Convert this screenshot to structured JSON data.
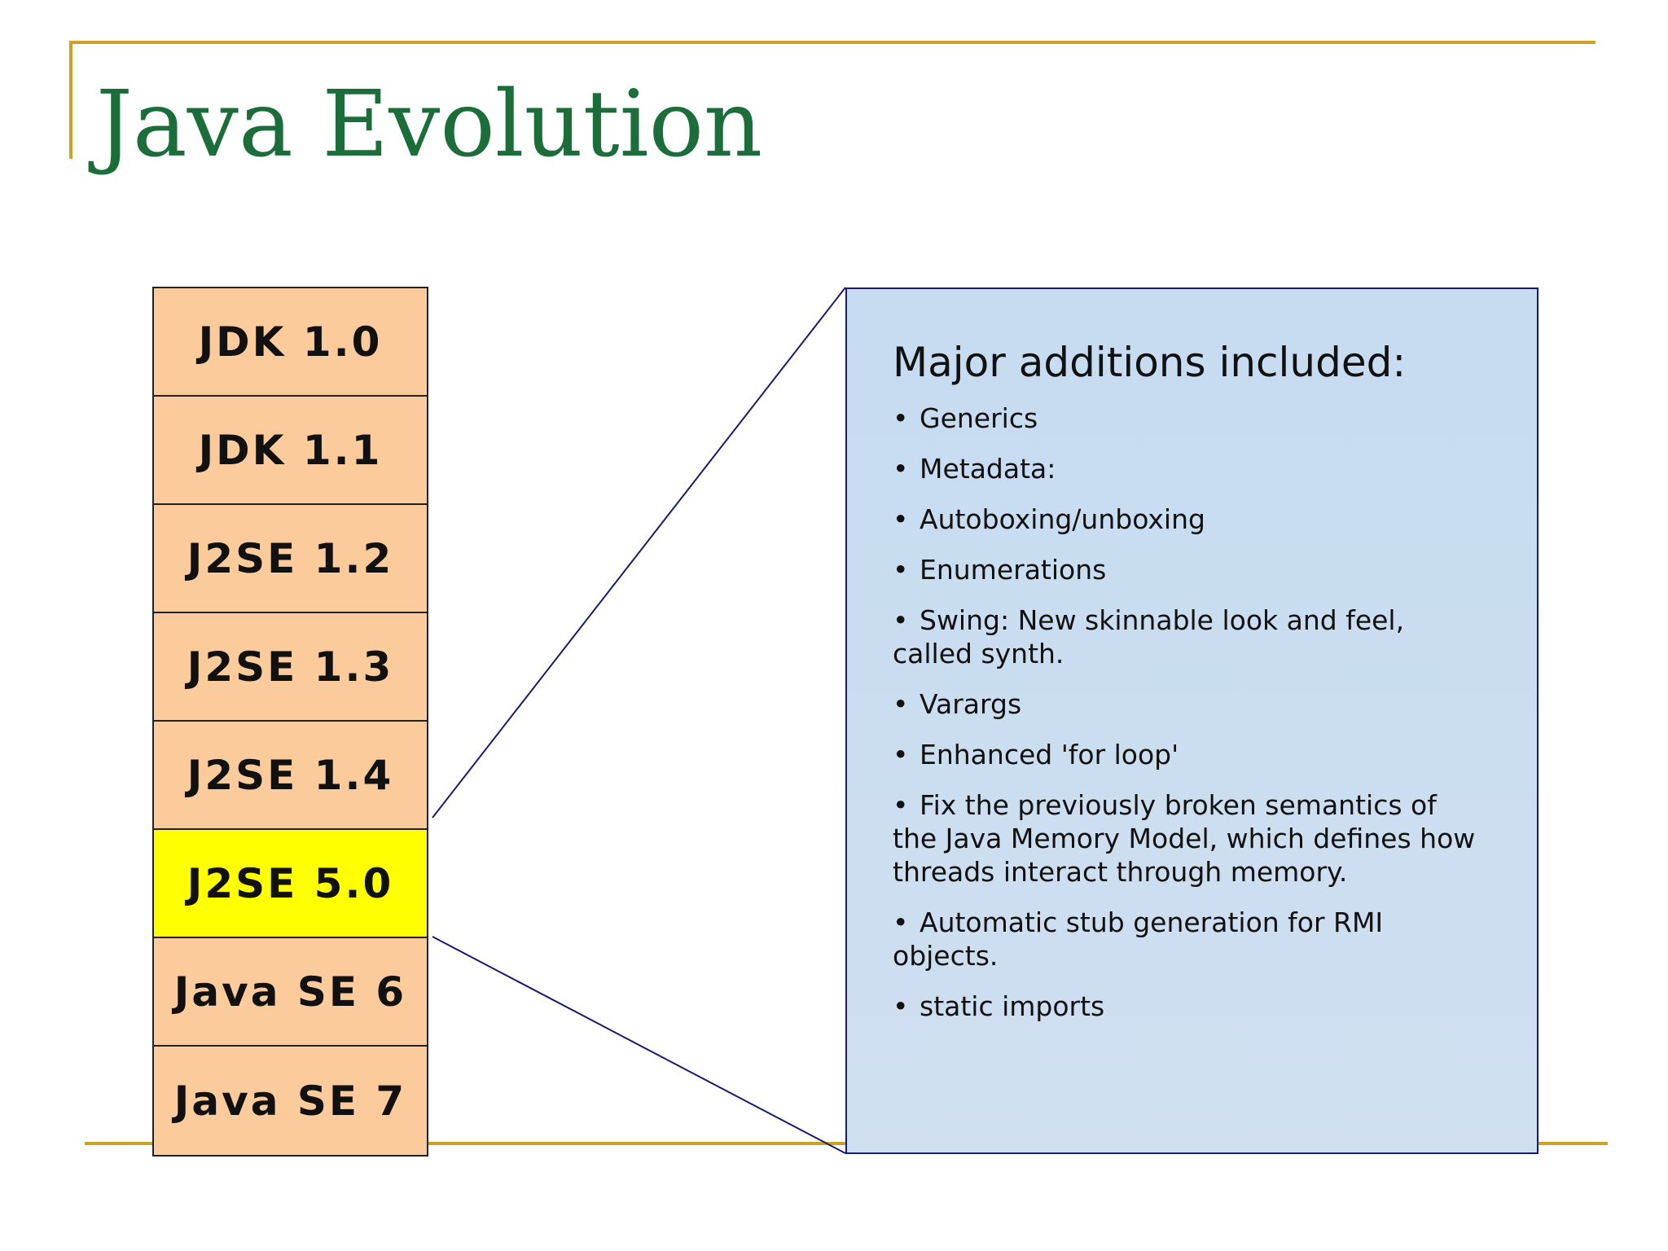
{
  "slide": {
    "title": "Java Evolution"
  },
  "versions": [
    {
      "label": "JDK 1.0",
      "highlighted": false
    },
    {
      "label": "JDK 1.1",
      "highlighted": false
    },
    {
      "label": "J2SE 1.2",
      "highlighted": false
    },
    {
      "label": "J2SE 1.3",
      "highlighted": false
    },
    {
      "label": "J2SE 1.4",
      "highlighted": false
    },
    {
      "label": "J2SE 5.0",
      "highlighted": true
    },
    {
      "label": "Java SE 6",
      "highlighted": false
    },
    {
      "label": "Java SE 7",
      "highlighted": false
    }
  ],
  "details": {
    "heading": "Major additions included:",
    "bullet_glyph": "•",
    "items": [
      "Generics",
      "Metadata:",
      "Autoboxing/unboxing",
      "Enumerations",
      "Swing: New skinnable look and feel, called synth.",
      "Varargs",
      "Enhanced 'for loop'",
      "Fix the previously broken semantics of the Java Memory Model, which defines how threads interact through memory.",
      "Automatic stub generation for RMI objects.",
      "static imports"
    ]
  },
  "colors": {
    "title_green": "#1b6e3a",
    "rule_gold": "#c9a227",
    "version_fill": "#fccb9c",
    "highlight_fill": "#ffff00",
    "detail_fill": "#c6dcf1",
    "callout_line": "#1a1a6e"
  }
}
